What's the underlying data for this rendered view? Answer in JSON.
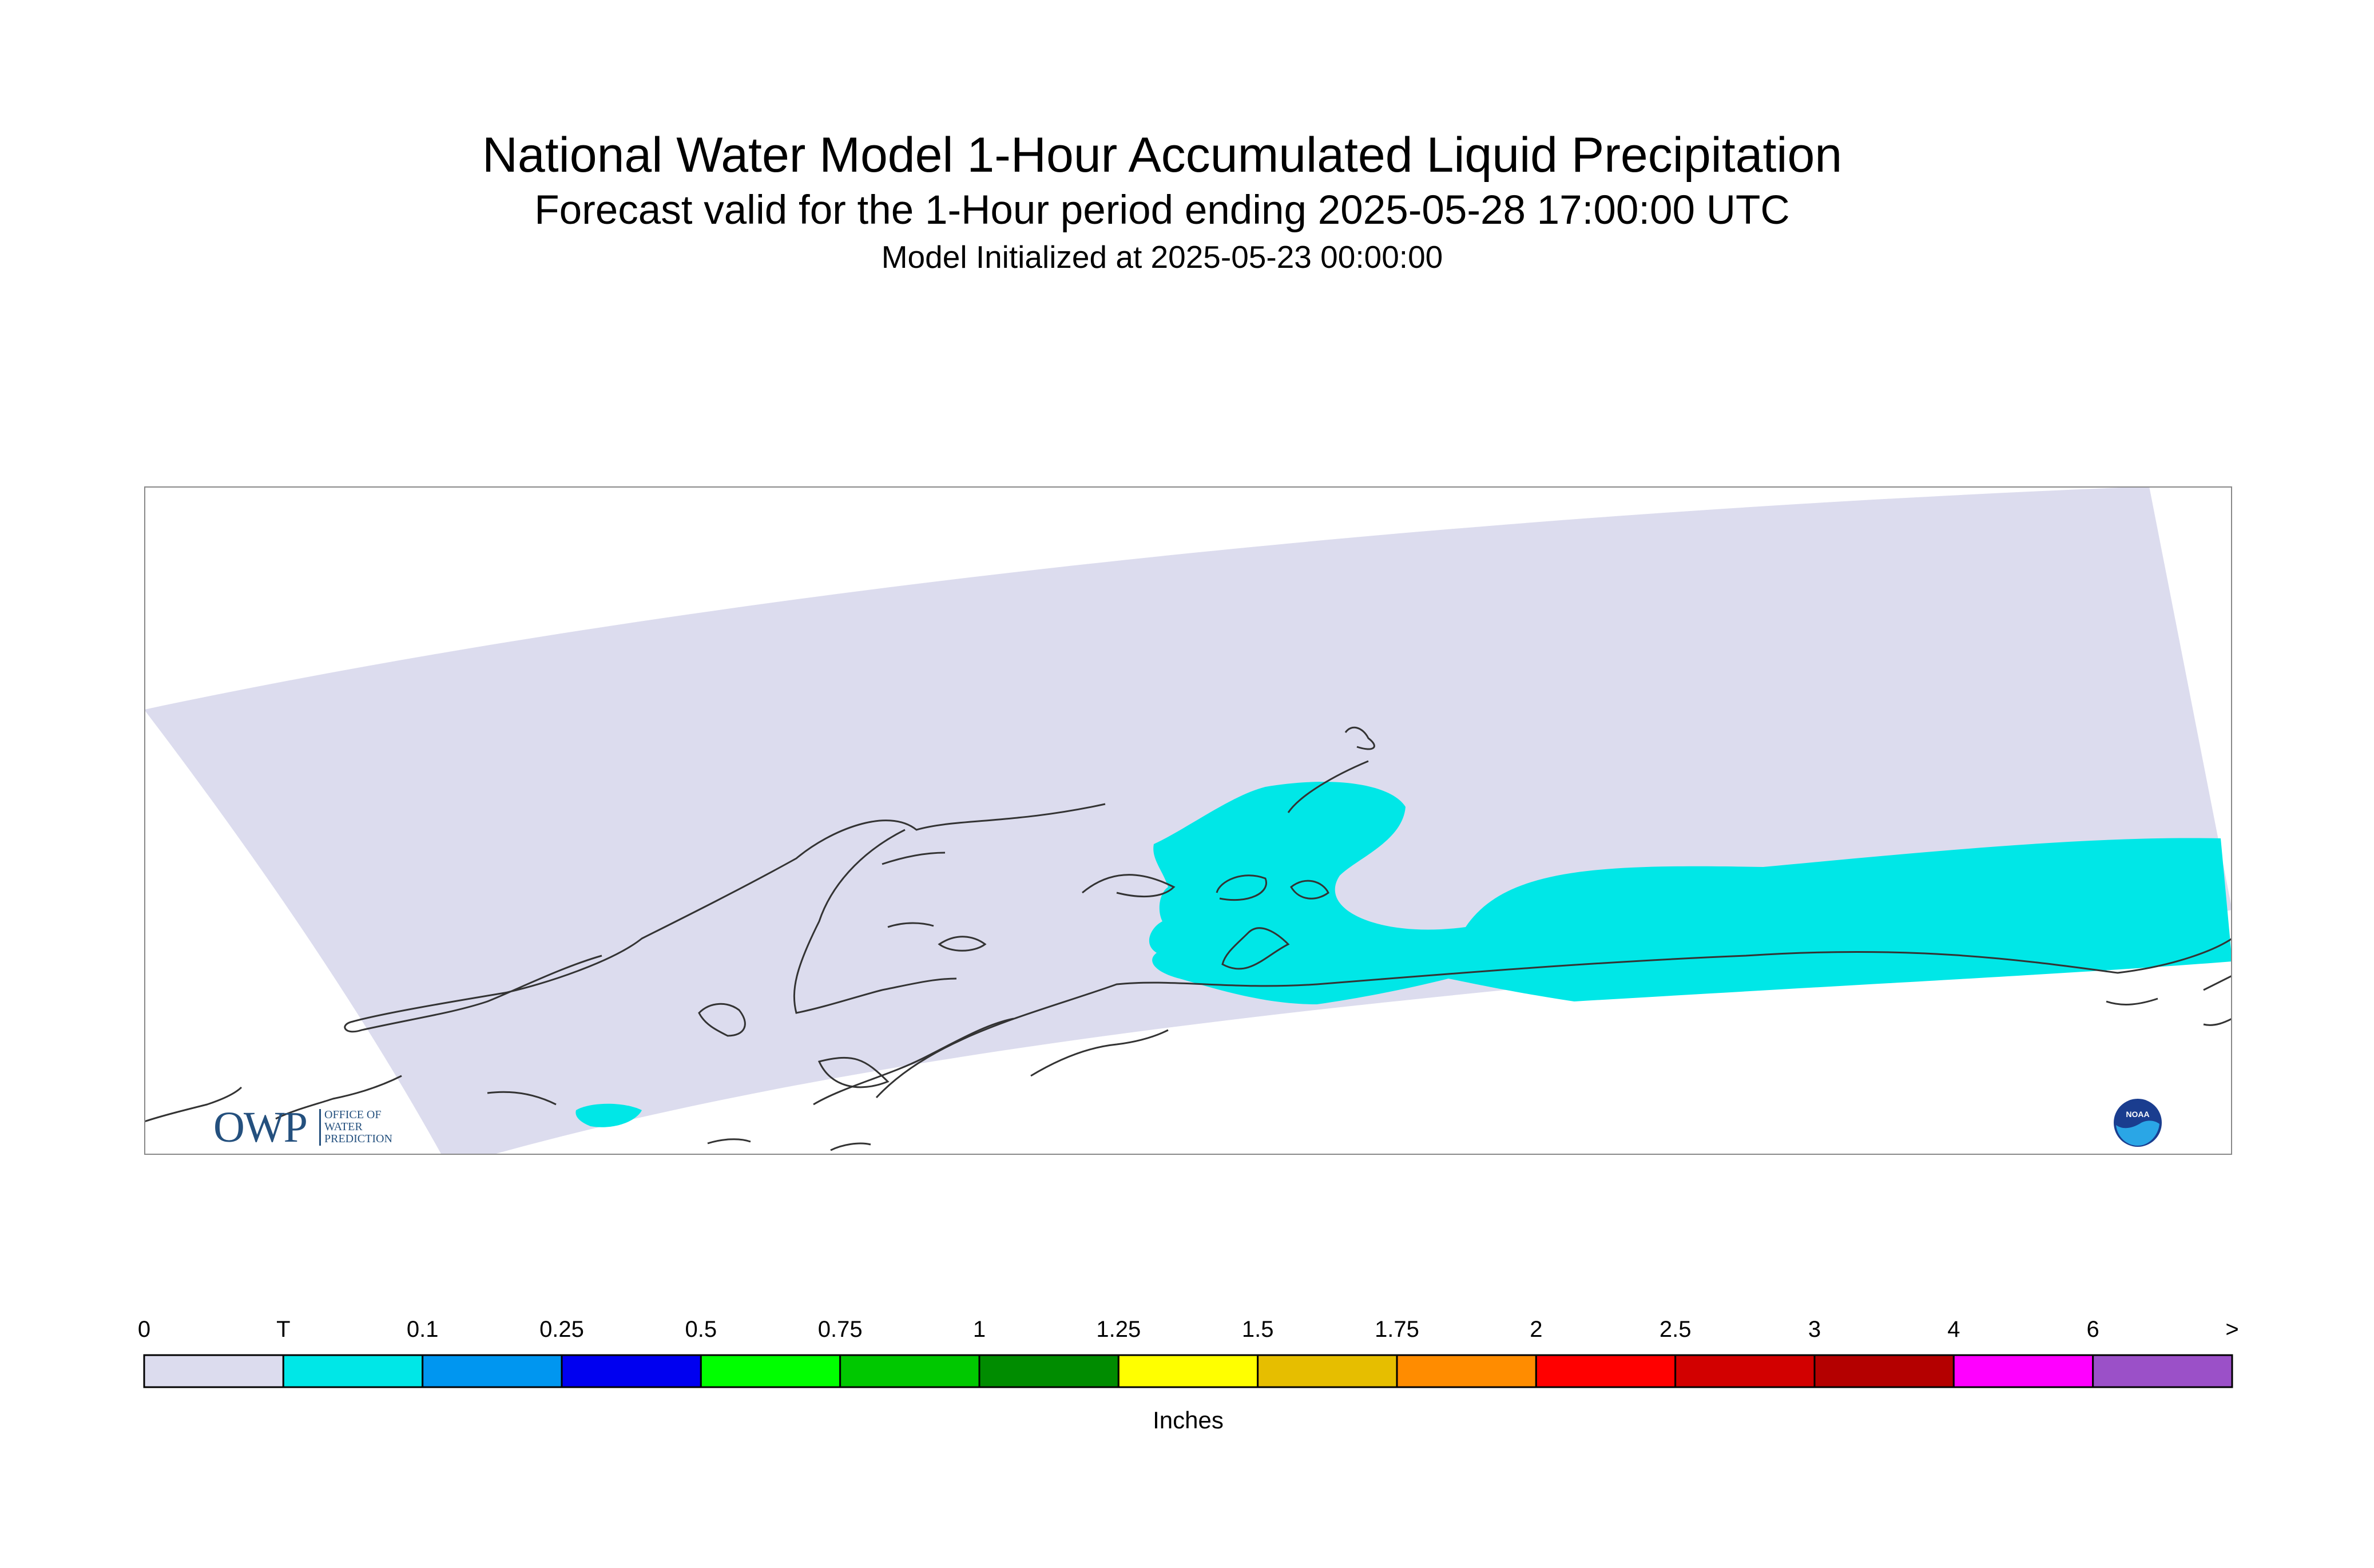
{
  "title": "National Water Model 1-Hour Accumulated Liquid Precipitation",
  "subtitle": "Forecast valid for the 1-Hour period ending 2025-05-28 17:00:00 UTC",
  "init_line": "Model Initialized at 2025-05-23 00:00:00",
  "logos": {
    "owp_big": "OWP",
    "owp_small": [
      "OFFICE OF",
      "WATER",
      "PREDICTION"
    ],
    "noaa": "NOAA"
  },
  "colors": {
    "no_precip": "#dcdcee",
    "trace": "#00e7e7",
    "coastline": "#333333",
    "frame": "#888888"
  },
  "legend": {
    "unit_label": "Inches",
    "tick_labels": [
      "0",
      "T",
      "0.1",
      "0.25",
      "0.5",
      "0.75",
      "1",
      "1.25",
      "1.5",
      "1.75",
      "2",
      "2.5",
      "3",
      "4",
      "6",
      ">"
    ],
    "bins": [
      {
        "color": "#dcdcee"
      },
      {
        "color": "#00e7e7"
      },
      {
        "color": "#0096f0"
      },
      {
        "color": "#0000f0"
      },
      {
        "color": "#00ff00"
      },
      {
        "color": "#00c800"
      },
      {
        "color": "#008c00"
      },
      {
        "color": "#ffff00"
      },
      {
        "color": "#e6be00"
      },
      {
        "color": "#ff8c00"
      },
      {
        "color": "#ff0000"
      },
      {
        "color": "#d20000"
      },
      {
        "color": "#b40000"
      },
      {
        "color": "#ff00ff"
      },
      {
        "color": "#9b50c8"
      }
    ]
  }
}
